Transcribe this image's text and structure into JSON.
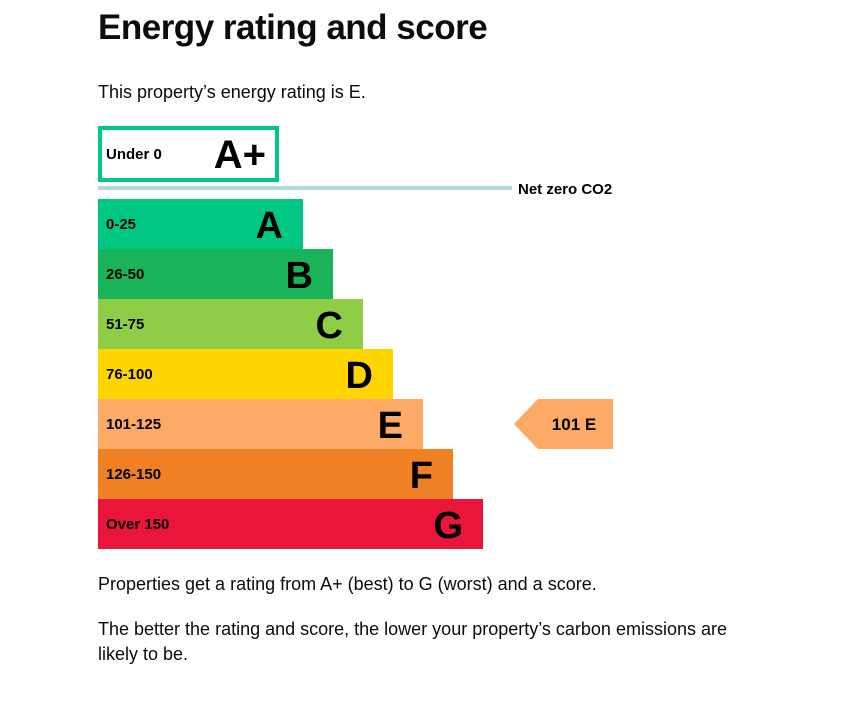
{
  "header": {
    "title": "Energy rating and score",
    "intro": "This property’s energy rating is E."
  },
  "body": {
    "para1": "Properties get a rating from A+ (best) to G (worst) and a score.",
    "para2": "The better the rating and score, the lower your property’s carbon emissions are likely to be."
  },
  "chart_data": {
    "type": "bar",
    "title": "",
    "bands": [
      {
        "range": "Under 0",
        "letter": "A+",
        "color": "#00c781",
        "style": "outline"
      },
      {
        "range": "0-25",
        "letter": "A",
        "color": "#00c781"
      },
      {
        "range": "26-50",
        "letter": "B",
        "color": "#19b459"
      },
      {
        "range": "51-75",
        "letter": "C",
        "color": "#8dce46"
      },
      {
        "range": "76-100",
        "letter": "D",
        "color": "#ffd500"
      },
      {
        "range": "101-125",
        "letter": "E",
        "color": "#fcaa65"
      },
      {
        "range": "126-150",
        "letter": "F",
        "color": "#ef8023"
      },
      {
        "range": "Over 150",
        "letter": "G",
        "color": "#e9153b"
      }
    ],
    "net_zero_label": "Net zero CO2",
    "net_zero_color": "#b1d8de",
    "current": {
      "score": 101,
      "rating": "E",
      "label": "101 E",
      "color": "#fcaa65"
    }
  }
}
